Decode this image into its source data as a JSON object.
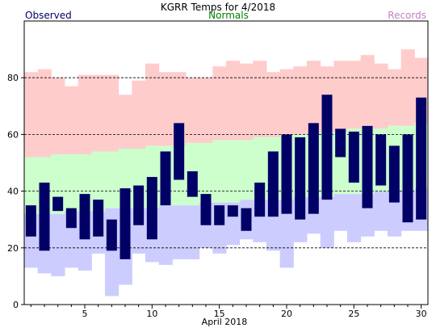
{
  "chart_data": {
    "type": "bar",
    "title": "KGRR Temps for 4/2018",
    "xlabel": "April 2018",
    "ylabel": "",
    "legend": [
      {
        "label": "Observed",
        "color": "#000066"
      },
      {
        "label": "Normals",
        "color": "#008000"
      },
      {
        "label": "Records",
        "color": "#c080c0"
      }
    ],
    "colors": {
      "observed": "#000066",
      "normal": "#ccffcc",
      "record": "#ffcccc",
      "record_low": "#ccccff",
      "grid": "#000000"
    },
    "ylim": [
      0,
      100
    ],
    "yticks": [
      0,
      20,
      40,
      60,
      80
    ],
    "xlim": [
      0.5,
      30.5
    ],
    "xticks": [
      5,
      10,
      15,
      20,
      25,
      30
    ],
    "grid": "dashed horizontal at 20/40/60/80",
    "days": [
      1,
      2,
      3,
      4,
      5,
      6,
      7,
      8,
      9,
      10,
      11,
      12,
      13,
      14,
      15,
      16,
      17,
      18,
      19,
      20,
      21,
      22,
      23,
      24,
      25,
      26,
      27,
      28,
      29,
      30
    ],
    "observed_high": [
      35,
      43,
      38,
      34,
      39,
      37,
      30,
      41,
      42,
      45,
      54,
      64,
      47,
      39,
      35,
      35,
      34,
      43,
      54,
      60,
      59,
      64,
      74,
      62,
      61,
      63,
      60,
      56,
      60,
      73
    ],
    "observed_low": [
      24,
      19,
      33,
      27,
      23,
      24,
      19,
      16,
      28,
      23,
      35,
      44,
      38,
      28,
      28,
      31,
      26,
      31,
      31,
      32,
      30,
      32,
      37,
      52,
      43,
      34,
      42,
      36,
      29,
      30
    ],
    "normal_high": [
      52,
      52,
      53,
      53,
      53,
      54,
      54,
      55,
      55,
      56,
      56,
      56,
      57,
      57,
      58,
      58,
      58,
      59,
      59,
      60,
      60,
      60,
      61,
      61,
      62,
      62,
      62,
      63,
      63,
      64
    ],
    "normal_low": [
      32,
      32,
      32,
      33,
      33,
      33,
      34,
      34,
      34,
      34,
      35,
      35,
      35,
      36,
      36,
      36,
      37,
      37,
      37,
      37,
      38,
      38,
      38,
      39,
      39,
      39,
      40,
      40,
      40,
      41
    ],
    "record_high": [
      82,
      83,
      80,
      77,
      81,
      81,
      81,
      74,
      79,
      85,
      82,
      82,
      80,
      80,
      84,
      86,
      85,
      86,
      82,
      83,
      84,
      86,
      84,
      86,
      86,
      88,
      85,
      83,
      90,
      87
    ],
    "record_low": [
      13,
      11,
      10,
      13,
      12,
      18,
      3,
      7,
      18,
      15,
      14,
      16,
      16,
      20,
      18,
      21,
      23,
      22,
      19,
      13,
      22,
      25,
      20,
      26,
      22,
      24,
      26,
      24,
      26,
      26
    ]
  }
}
